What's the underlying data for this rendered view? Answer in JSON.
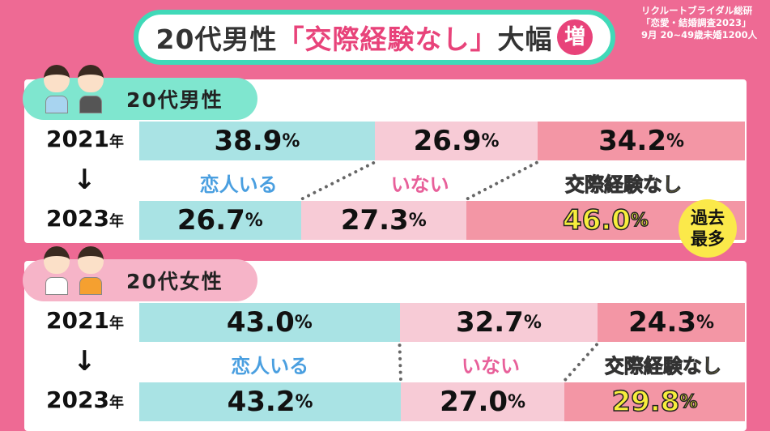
{
  "title": {
    "pre": "20代男性",
    "quote": "「交際経験なし」",
    "post": "大幅",
    "badge": "増"
  },
  "source": [
    "リクルートブライダル総研",
    "「恋愛・結婚調査2023」",
    "9月 20~49歳未婚1200人"
  ],
  "colors": {
    "background": "#ee6a94",
    "has_partner": "#a9e3e4",
    "no_partner": "#f7cbd6",
    "never_dated": "#f396a5",
    "highlight": "#f7ee3c"
  },
  "chart_data": [
    {
      "type": "bar",
      "stacked": true,
      "orientation": "horizontal",
      "group": "20代男性",
      "group_num": "20",
      "group_suffix": "代",
      "group_word": "男性",
      "categories": [
        "2021年",
        "2023年"
      ],
      "series": [
        {
          "name": "恋人いる",
          "values": [
            38.9,
            26.7
          ]
        },
        {
          "name": "いない",
          "values": [
            26.9,
            27.3
          ]
        },
        {
          "name": "交際経験なし",
          "values": [
            34.2,
            46.0
          ]
        }
      ],
      "annotation": "過去最多",
      "unit": "%"
    },
    {
      "type": "bar",
      "stacked": true,
      "orientation": "horizontal",
      "group": "20代女性",
      "group_num": "20",
      "group_suffix": "代",
      "group_word": "女性",
      "categories": [
        "2021年",
        "2023年"
      ],
      "series": [
        {
          "name": "恋人いる",
          "values": [
            43.0,
            43.2
          ]
        },
        {
          "name": "いない",
          "values": [
            32.7,
            27.0
          ]
        },
        {
          "name": "交際経験なし",
          "values": [
            24.3,
            29.8
          ]
        }
      ],
      "unit": "%"
    }
  ]
}
